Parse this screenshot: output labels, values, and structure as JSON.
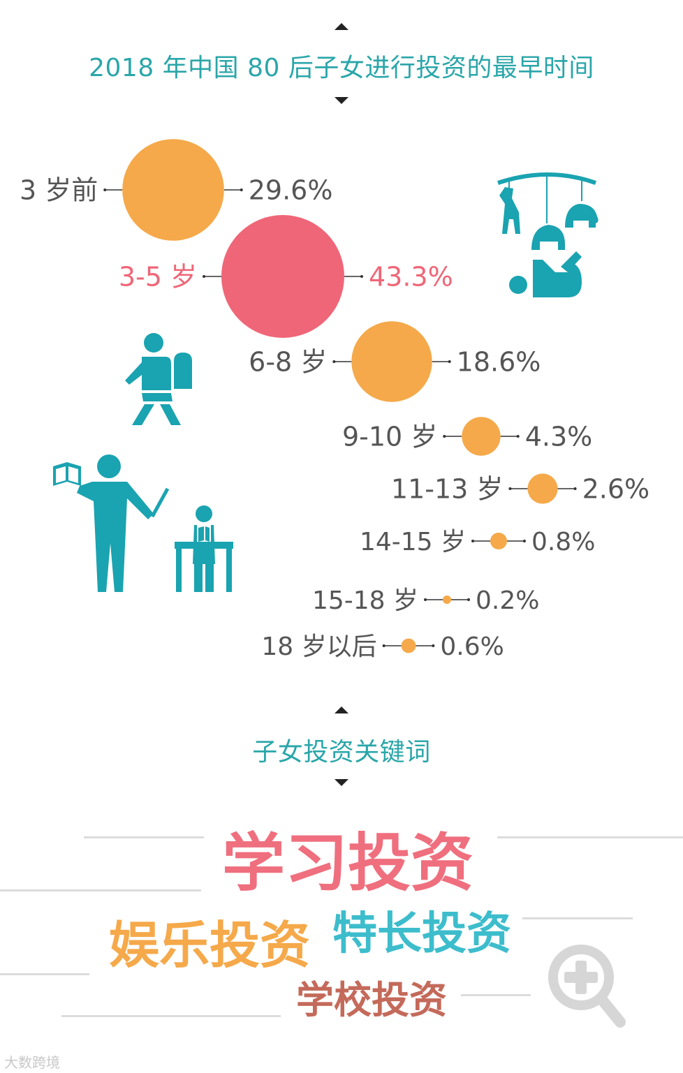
{
  "chart_title": "2018 年中国 80 后子女进行投资的最早时间",
  "chart_data": {
    "type": "bubble",
    "title": "2018 年中国 80 后子女进行投资的最早时间",
    "categories": [
      "3 岁前",
      "3-5 岁",
      "6-8 岁",
      "9-10 岁",
      "11-13 岁",
      "14-15 岁",
      "15-18 岁",
      "18 岁以后"
    ],
    "values": [
      29.6,
      43.3,
      18.6,
      4.3,
      2.6,
      0.8,
      0.2,
      0.6
    ],
    "value_labels": [
      "29.6%",
      "43.3%",
      "18.6%",
      "4.3%",
      "2.6%",
      "0.8%",
      "0.2%",
      "0.6%"
    ],
    "unit": "%",
    "highlight_index": 1,
    "colors": {
      "default": "#f5a94a",
      "highlight": "#ef6678",
      "label": "#555555",
      "highlight_label": "#ef6678"
    }
  },
  "keywords_section": {
    "title": "子女投资关键词",
    "keywords": [
      {
        "text": "学习投资",
        "color": "#ef6f7e"
      },
      {
        "text": "娱乐投资",
        "color": "#f5a94a"
      },
      {
        "text": "特长投资",
        "color": "#3dbdcc"
      },
      {
        "text": "学校投资",
        "color": "#c46a5a"
      }
    ]
  },
  "icons": {
    "baby-mobile": "baby-mobile-icon",
    "student": "student-backpack-icon",
    "teacher": "teacher-reading-icon",
    "zoom": "zoom-in-icon",
    "icon_color": "#1aa3b0"
  },
  "watermark": "大数跨境"
}
